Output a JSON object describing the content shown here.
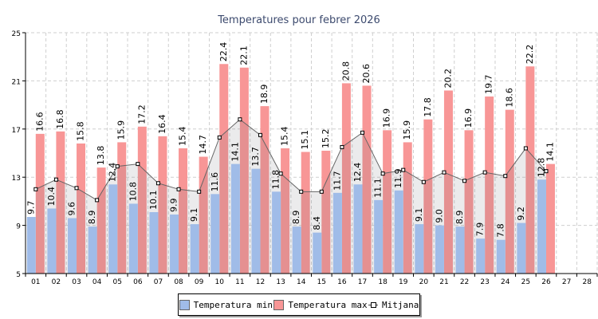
{
  "chart_data": {
    "type": "bar",
    "title": "Temperatures pour febrer 2026",
    "xlabel": "",
    "ylabel": "",
    "ylim": [
      5,
      25
    ],
    "yticks": [
      "5",
      "9",
      "13",
      "17",
      "21",
      "25"
    ],
    "categories": [
      "01",
      "02",
      "03",
      "04",
      "05",
      "06",
      "07",
      "08",
      "09",
      "10",
      "11",
      "12",
      "13",
      "14",
      "15",
      "16",
      "17",
      "18",
      "19",
      "20",
      "21",
      "22",
      "23",
      "24",
      "25",
      "26",
      "27",
      "28"
    ],
    "grid": true,
    "legend_position": "bottom",
    "series": [
      {
        "name": "Temperatura min",
        "type": "bar",
        "color": "#a0bce8",
        "values": [
          9.7,
          10.4,
          9.6,
          8.9,
          12.4,
          10.8,
          10.1,
          9.9,
          9.1,
          11.6,
          14.1,
          13.7,
          11.8,
          8.9,
          8.4,
          11.7,
          12.4,
          11.1,
          11.9,
          9.1,
          9.0,
          8.9,
          7.9,
          7.8,
          9.2,
          12.8,
          null,
          null
        ]
      },
      {
        "name": "Temperatura max",
        "type": "bar",
        "color": "#f89696",
        "values": [
          16.6,
          16.8,
          15.8,
          13.8,
          15.9,
          17.2,
          16.4,
          15.4,
          14.7,
          22.4,
          22.1,
          18.9,
          15.4,
          15.1,
          15.2,
          20.8,
          20.6,
          16.9,
          15.9,
          17.8,
          20.2,
          16.9,
          19.7,
          18.6,
          22.2,
          14.1,
          null,
          null
        ]
      },
      {
        "name": "Mitjana",
        "type": "line",
        "color": "#666666",
        "values": [
          12.0,
          12.8,
          12.1,
          11.1,
          13.9,
          14.1,
          12.5,
          12.0,
          11.8,
          16.3,
          17.8,
          16.5,
          13.3,
          11.8,
          11.8,
          15.5,
          16.7,
          13.3,
          13.6,
          12.6,
          13.4,
          12.7,
          13.4,
          13.1,
          15.4,
          13.5,
          null,
          null
        ]
      }
    ]
  }
}
